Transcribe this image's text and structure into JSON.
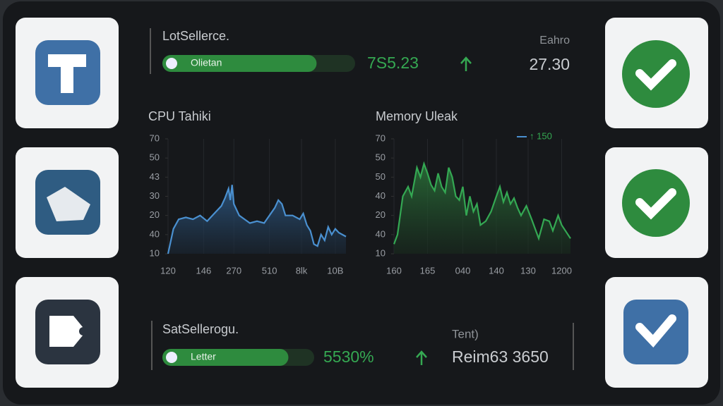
{
  "top_panel": {
    "title": "LotSellerce.",
    "bar_label": "Olietan",
    "progress": 80,
    "value": "7S5.23",
    "side_label": "Eahro",
    "side_value": "27.30"
  },
  "bottom_panel": {
    "title": "SatSellerogu.",
    "bar_label": "Letter",
    "progress": 83,
    "value": "5530%",
    "side_label": "Tent)",
    "side_value": "Reim63 3650"
  },
  "chart_data": [
    {
      "type": "area",
      "title": "CPU Tahiki",
      "xlim": [
        0,
        100
      ],
      "ylim": [
        10,
        70
      ],
      "xticks": [
        {
          "value": 0,
          "label": "120"
        },
        {
          "value": 20,
          "label": "146"
        },
        {
          "value": 37,
          "label": "270"
        },
        {
          "value": 57,
          "label": "510"
        },
        {
          "value": 75,
          "label": "8lk"
        },
        {
          "value": 94,
          "label": "10B"
        }
      ],
      "yticks": [
        70,
        {
          "value": 60,
          "label": "50"
        },
        {
          "value": 50,
          "label": "43"
        },
        {
          "value": 40,
          "label": "30"
        },
        {
          "value": 30,
          "label": "20"
        },
        {
          "value": 20,
          "label": "40"
        },
        10
      ],
      "series": [
        {
          "color": "#4a90d0",
          "x": [
            0,
            3,
            6,
            10,
            14,
            18,
            22,
            26,
            30,
            32,
            34,
            35,
            36,
            37,
            40,
            43,
            46,
            50,
            54,
            57,
            60,
            62,
            64,
            66,
            70,
            74,
            76,
            78,
            80,
            82,
            84,
            86,
            88,
            90,
            92,
            94,
            96,
            100
          ],
          "values": [
            10,
            23,
            28,
            29,
            28,
            30,
            27,
            31,
            35,
            39,
            44,
            38,
            46,
            36,
            30,
            28,
            26,
            27,
            26,
            30,
            34,
            38,
            36,
            30,
            30,
            28,
            31,
            25,
            22,
            15,
            14,
            20,
            17,
            24,
            20,
            23,
            21,
            19
          ]
        }
      ]
    },
    {
      "type": "area",
      "title": "Memory Uleak",
      "legend_label": "↑ 150",
      "xlim": [
        0,
        100
      ],
      "ylim": [
        10,
        70
      ],
      "xticks": [
        {
          "value": 0,
          "label": "160"
        },
        {
          "value": 19,
          "label": "165"
        },
        {
          "value": 39,
          "label": "040"
        },
        {
          "value": 58,
          "label": "140"
        },
        {
          "value": 76,
          "label": "130"
        },
        {
          "value": 95,
          "label": "1200"
        }
      ],
      "yticks": [
        70,
        {
          "value": 60,
          "label": "50"
        },
        50,
        {
          "value": 40,
          "label": "40"
        },
        {
          "value": 30,
          "label": "20"
        },
        {
          "value": 20,
          "label": "40"
        },
        10
      ],
      "series": [
        {
          "color": "#34a853",
          "x": [
            0,
            2,
            5,
            8,
            10,
            13,
            15,
            17,
            19,
            21,
            23,
            25,
            27,
            29,
            31,
            33,
            35,
            37,
            39,
            41,
            43,
            45,
            47,
            49,
            52,
            55,
            58,
            60,
            62,
            64,
            66,
            68,
            70,
            72,
            75,
            78,
            80,
            82,
            85,
            88,
            90,
            93,
            95,
            100
          ],
          "values": [
            15,
            20,
            40,
            45,
            40,
            55,
            50,
            57,
            52,
            46,
            43,
            52,
            45,
            42,
            55,
            50,
            40,
            38,
            45,
            30,
            40,
            32,
            36,
            25,
            27,
            32,
            40,
            45,
            37,
            42,
            36,
            39,
            34,
            30,
            35,
            28,
            23,
            18,
            28,
            27,
            22,
            30,
            25,
            18
          ]
        }
      ]
    }
  ]
}
